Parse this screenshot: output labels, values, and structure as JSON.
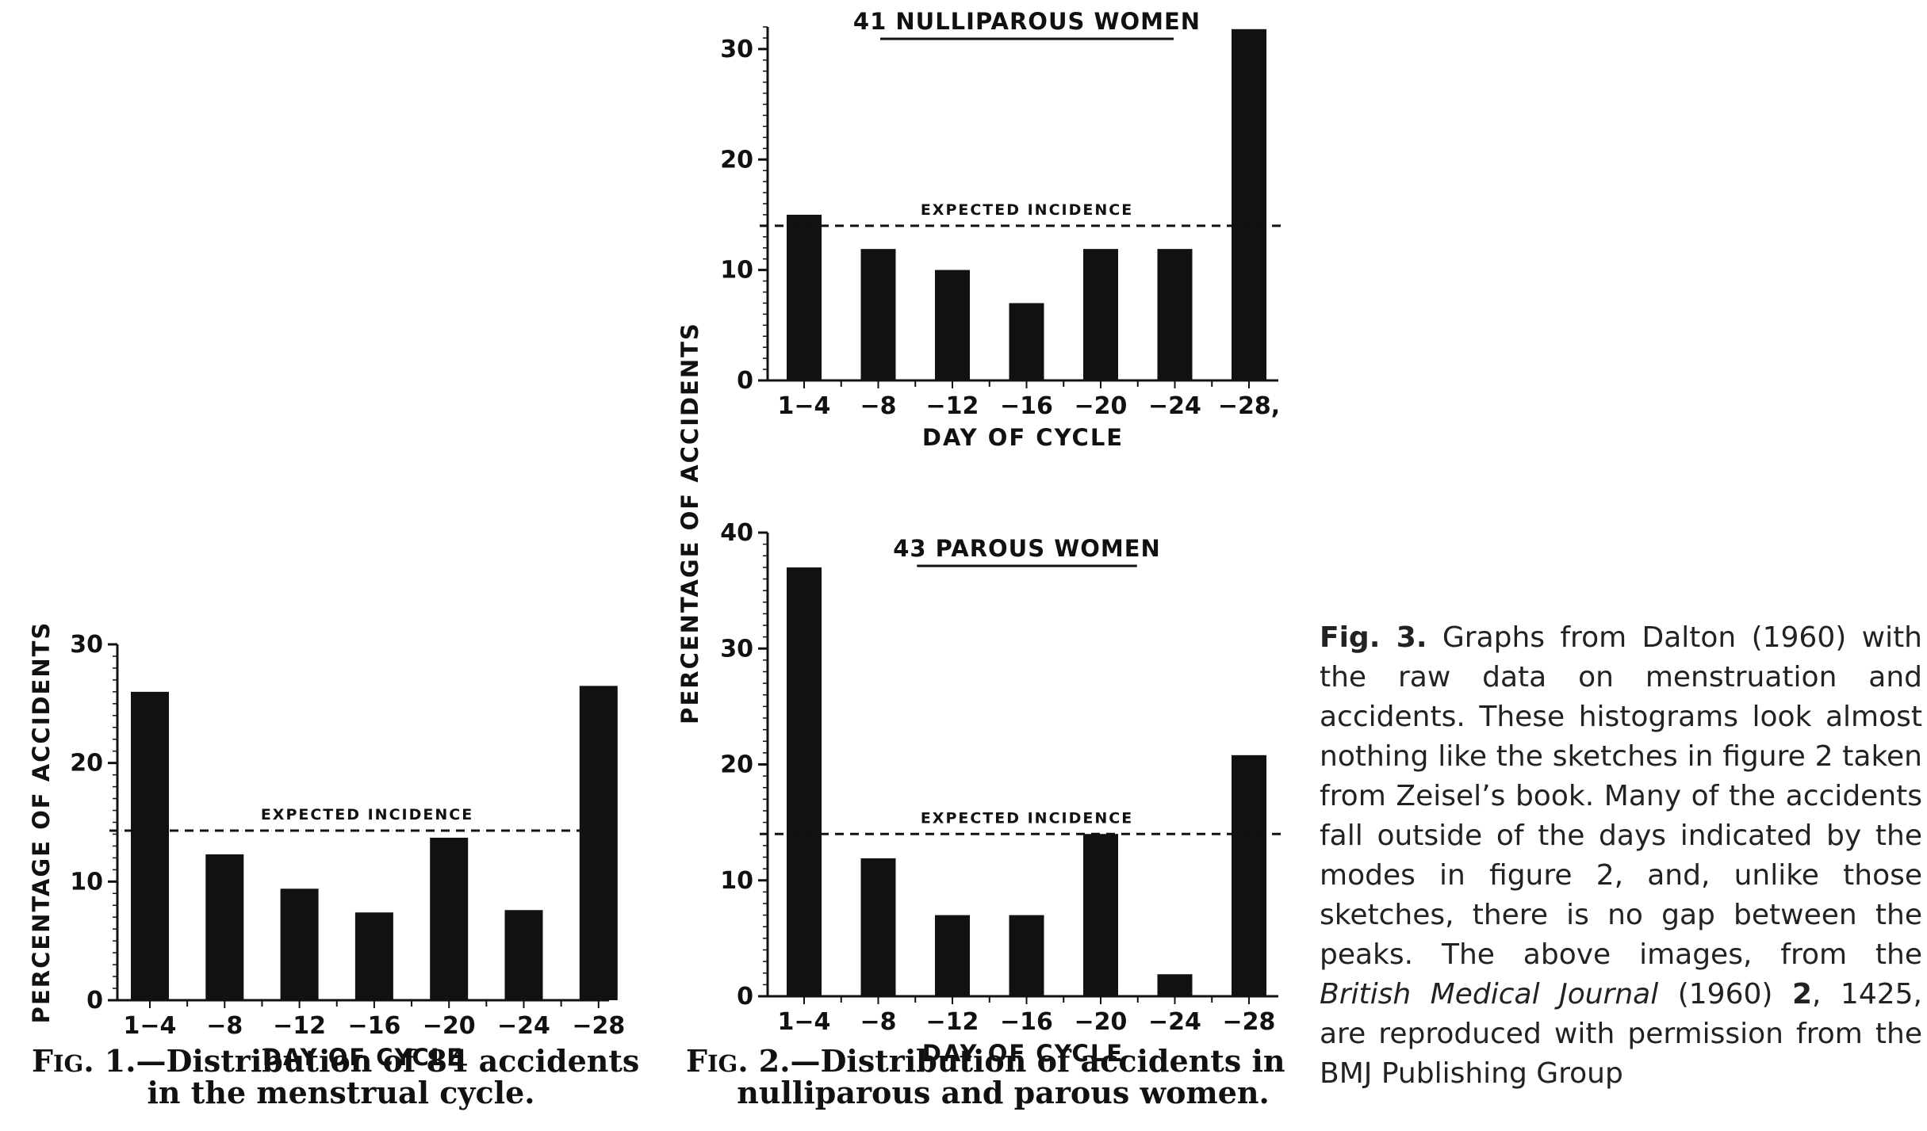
{
  "chart_data": [
    {
      "id": "fig1",
      "type": "bar",
      "categories": [
        "1-4",
        "-8",
        "-12",
        "-16",
        "-20",
        "-24",
        "-28"
      ],
      "values": [
        26,
        12.3,
        9.4,
        7.4,
        13.7,
        7.6,
        26.5
      ],
      "ylim": [
        0,
        30
      ],
      "yticks": [
        0,
        10,
        20,
        30
      ],
      "ylabel": "PERCENTAGE OF ACCIDENTS",
      "xlabel": "DAY OF CYCLE",
      "title": "",
      "expected": 14.3,
      "expected_label": "EXPECTED INCIDENCE",
      "grid": false
    },
    {
      "id": "fig2-top",
      "type": "bar",
      "categories": [
        "1-4",
        "-8",
        "-12",
        "-16",
        "-20",
        "-24",
        "-28,"
      ],
      "values": [
        15,
        11.9,
        10,
        7,
        11.9,
        11.9,
        31.8
      ],
      "ylim": [
        0,
        32
      ],
      "yticks": [
        0,
        10,
        20,
        30
      ],
      "xlabel": "DAY OF CYCLE",
      "title": "41 NULLIPAROUS WOMEN",
      "expected": 14,
      "expected_label": "EXPECTED INCIDENCE",
      "grid": false
    },
    {
      "id": "fig2-bottom",
      "type": "bar",
      "categories": [
        "1-4",
        "-8",
        "-12",
        "-16",
        "-20",
        "-24",
        "-28"
      ],
      "values": [
        37,
        11.9,
        7,
        7,
        14,
        1.9,
        20.8
      ],
      "ylim": [
        0,
        40
      ],
      "yticks": [
        0,
        10,
        20,
        30,
        40
      ],
      "xlabel": "DAY OF CYCLE",
      "title": "43 PAROUS WOMEN",
      "expected": 14,
      "expected_label": "EXPECTED INCIDENCE",
      "grid": false
    }
  ],
  "fig2_ylabel": "PERCENTAGE OF ACCIDENTS",
  "captions": {
    "fig1_lead": "F",
    "fig1_sc": "IG",
    "fig1_rest1": ". 1.—Distribution of 84 accidents",
    "fig1_line2": "in the menstrual cycle.",
    "fig2_lead": "F",
    "fig2_sc": "IG",
    "fig2_rest1": ". 2.—Distribution of accidents in",
    "fig2_line2": "nulliparous and parous women."
  },
  "side_caption": {
    "lead": "Fig. 3.",
    "text1": " Graphs from Dalton (1960) with the raw data on menstruation and accidents. These histograms look almost nothing like the sketches in figure 2 taken from Zeisel’s book. Many of the accidents fall outside of the days indicated by the modes in figure 2, and, unlike those sketches, there is no gap between the peaks. The above images, from the ",
    "journal": "British Medical Journal",
    "text2": " (1960) ",
    "volume": "2",
    "text3": ", 1425, are reproduced with permission from the BMJ Publishing Group"
  }
}
